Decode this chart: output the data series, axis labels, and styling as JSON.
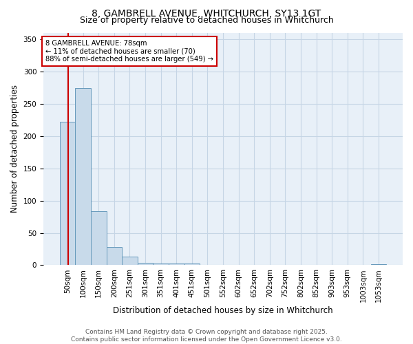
{
  "title_line1": "8, GAMBRELL AVENUE, WHITCHURCH, SY13 1GT",
  "title_line2": "Size of property relative to detached houses in Whitchurch",
  "xlabel": "Distribution of detached houses by size in Whitchurch",
  "ylabel": "Number of detached properties",
  "categories": [
    "50sqm",
    "100sqm",
    "150sqm",
    "200sqm",
    "251sqm",
    "301sqm",
    "351sqm",
    "401sqm",
    "451sqm",
    "501sqm",
    "552sqm",
    "602sqm",
    "652sqm",
    "702sqm",
    "752sqm",
    "802sqm",
    "852sqm",
    "903sqm",
    "953sqm",
    "1003sqm",
    "1053sqm"
  ],
  "values": [
    222,
    274,
    84,
    28,
    13,
    4,
    3,
    3,
    3,
    0,
    0,
    0,
    0,
    0,
    0,
    0,
    0,
    0,
    0,
    0,
    2
  ],
  "bar_color": "#c8daea",
  "bar_edge_color": "#6699bb",
  "grid_color": "#c5d5e5",
  "background_color": "#e8f0f8",
  "property_line_color": "#cc0000",
  "annotation_text": "8 GAMBRELL AVENUE: 78sqm\n← 11% of detached houses are smaller (70)\n88% of semi-detached houses are larger (549) →",
  "annotation_box_color": "#cc0000",
  "ylim": [
    0,
    360
  ],
  "yticks": [
    0,
    50,
    100,
    150,
    200,
    250,
    300,
    350
  ],
  "footer_text": "Contains HM Land Registry data © Crown copyright and database right 2025.\nContains public sector information licensed under the Open Government Licence v3.0.",
  "title_fontsize": 10,
  "subtitle_fontsize": 9,
  "axis_label_fontsize": 8.5,
  "tick_fontsize": 7.5,
  "footer_fontsize": 6.5
}
